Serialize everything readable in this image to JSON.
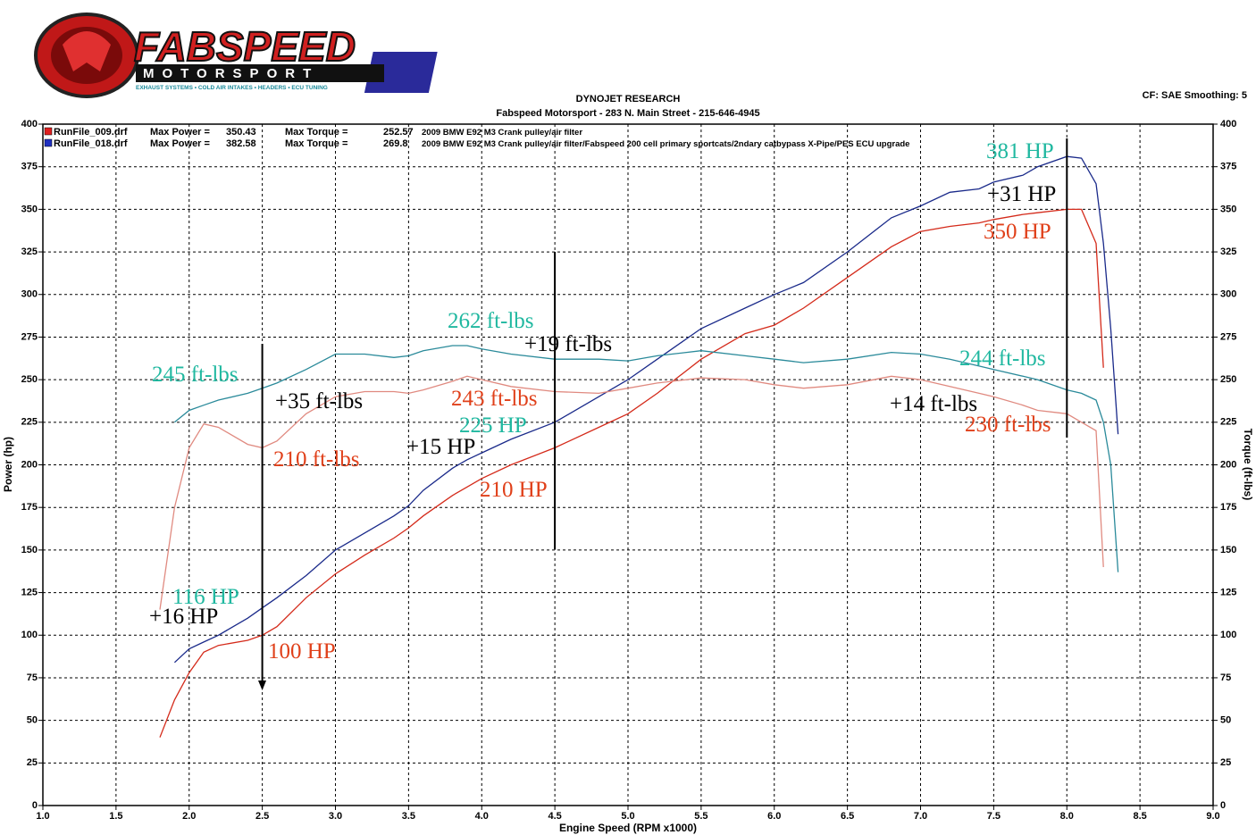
{
  "logo": {
    "title": "FABSPEED",
    "subtitle": "MOTORSPORT",
    "tagline": "EXHAUST SYSTEMS • COLD AIR INTAKES • HEADERS • ECU TUNING"
  },
  "header": {
    "title": "DYNOJET RESEARCH",
    "subtitle": "Fabspeed Motorsport - 283 N. Main Street - 215-646-4945",
    "settings": "CF: SAE  Smoothing: 5"
  },
  "chart_data": {
    "type": "line",
    "x_label": "Engine Speed (RPM x1000)",
    "y_label": "Power (hp)",
    "y2_label": "Torque (ft-lbs)",
    "grid": true,
    "xlim": [
      1,
      9
    ],
    "ylim": [
      0,
      400
    ],
    "y2lim": [
      0,
      400
    ],
    "xticks": [
      {
        "value": 1,
        "label": "1.0"
      },
      1.5,
      {
        "value": 2,
        "label": "2.0"
      },
      2.5,
      {
        "value": 3,
        "label": "3.0"
      },
      3.5,
      {
        "value": 4,
        "label": "4.0"
      },
      4.5,
      {
        "value": 5,
        "label": "5.0"
      },
      5.5,
      {
        "value": 6,
        "label": "6.0"
      },
      6.5,
      {
        "value": 7,
        "label": "7.0"
      },
      7.5,
      {
        "value": 8,
        "label": "8.0"
      },
      8.5,
      {
        "value": 9,
        "label": "9.0"
      }
    ],
    "yticks": [
      0,
      25,
      50,
      75,
      100,
      125,
      150,
      175,
      200,
      225,
      250,
      275,
      300,
      325,
      350,
      375,
      400
    ],
    "y2ticks": [
      0,
      25,
      50,
      75,
      100,
      125,
      150,
      175,
      200,
      225,
      250,
      275,
      300,
      325,
      350,
      375,
      400
    ],
    "x": [
      1.8,
      1.9,
      2.0,
      2.1,
      2.2,
      2.4,
      2.5,
      2.6,
      2.8,
      3.0,
      3.2,
      3.4,
      3.5,
      3.6,
      3.8,
      3.9,
      4.0,
      4.2,
      4.5,
      4.8,
      5.0,
      5.2,
      5.5,
      5.8,
      6.0,
      6.2,
      6.5,
      6.8,
      7.0,
      7.2,
      7.4,
      7.5,
      7.7,
      7.8,
      8.0,
      8.1,
      8.2,
      8.25,
      8.3,
      8.35
    ],
    "runs": [
      {
        "name": "RunFile_009.drf",
        "color": "#e02020",
        "max_power_label": "Max Power =",
        "max_power": 350.43,
        "max_torque_label": "Max Torque =",
        "max_torque": 252.57,
        "description": "2009 BMW E92 M3 Crank pulley/air filter"
      },
      {
        "name": "RunFile_018.drf",
        "color": "#2030c0",
        "max_power_label": "Max Power =",
        "max_power": 382.58,
        "max_torque_label": "Max Torque =",
        "max_torque": 269.8,
        "description": "2009 BMW E92 M3 Crank pulley/air filter/Fabspeed 200 cell primary sportcats/2ndary catbypass X-Pipe/PES ECU upgrade"
      }
    ],
    "series": [
      {
        "color": "#d42a1a",
        "values": [
          40,
          62,
          78,
          90,
          94,
          97,
          100,
          105,
          122,
          136,
          147,
          157,
          163,
          170,
          182,
          187,
          192,
          200,
          210,
          222,
          230,
          242,
          262,
          277,
          282,
          292,
          310,
          328,
          337,
          340,
          342,
          344,
          347,
          348,
          350,
          350,
          330,
          257,
          null,
          null
        ]
      },
      {
        "color": "#1a2a8a",
        "values": [
          null,
          84,
          92,
          96,
          100,
          110,
          116,
          122,
          135,
          150,
          160,
          170,
          176,
          185,
          198,
          203,
          207,
          215,
          225,
          240,
          250,
          262,
          280,
          292,
          300,
          307,
          325,
          345,
          352,
          360,
          362,
          366,
          370,
          375,
          381,
          380,
          365,
          330,
          280,
          218
        ]
      },
      {
        "color": "#e08a80",
        "axis": "y2",
        "values": [
          115,
          175,
          210,
          224,
          222,
          212,
          210,
          214,
          230,
          240,
          243,
          243,
          242,
          244,
          249,
          252,
          250,
          246,
          243,
          242,
          245,
          248,
          251,
          250,
          247,
          245,
          247,
          252,
          250,
          246,
          242,
          240,
          235,
          232,
          230,
          225,
          220,
          140,
          null,
          null
        ]
      },
      {
        "color": "#2a8a9a",
        "axis": "y2",
        "values": [
          null,
          225,
          232,
          235,
          238,
          242,
          245,
          248,
          256,
          265,
          265,
          263,
          264,
          267,
          270,
          270,
          268,
          265,
          262,
          262,
          261,
          264,
          267,
          264,
          262,
          260,
          262,
          266,
          265,
          262,
          258,
          256,
          252,
          250,
          244,
          242,
          238,
          225,
          200,
          137
        ]
      }
    ],
    "annotations": [
      {
        "text": "381 HP",
        "color": "#20b8a0"
      },
      {
        "text": "+31 HP",
        "color": "#000000"
      },
      {
        "text": "350 HP",
        "color": "#e0401a"
      },
      {
        "text": "262 ft-lbs",
        "color": "#20b8a0"
      },
      {
        "text": "+19 ft-lbs",
        "color": "#000000"
      },
      {
        "text": "245 ft-lbs",
        "color": "#20b8a0"
      },
      {
        "text": "+35 ft-lbs",
        "color": "#000000"
      },
      {
        "text": "243 ft-lbs",
        "color": "#e0401a"
      },
      {
        "text": "225 HP",
        "color": "#20b8a0"
      },
      {
        "text": "+15 HP",
        "color": "#000000"
      },
      {
        "text": "210 ft-lbs",
        "color": "#e0401a"
      },
      {
        "text": "210 HP",
        "color": "#e0401a"
      },
      {
        "text": "244 ft-lbs",
        "color": "#20b8a0"
      },
      {
        "text": "+14 ft-lbs",
        "color": "#000000"
      },
      {
        "text": "230 ft-lbs",
        "color": "#e0401a"
      },
      {
        "text": "116 HP",
        "color": "#20b8a0"
      },
      {
        "text": "+16 HP",
        "color": "#000000"
      },
      {
        "text": "100 HP",
        "color": "#e0401a"
      }
    ]
  }
}
